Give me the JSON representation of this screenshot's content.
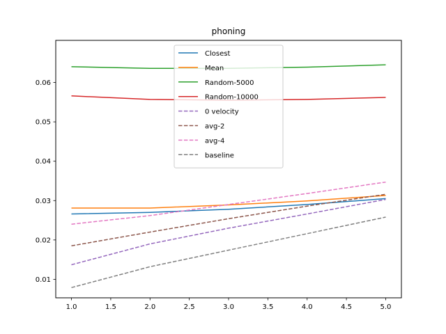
{
  "chart_data": {
    "type": "line",
    "title": "phoning",
    "xlabel": "",
    "ylabel": "",
    "x": [
      1,
      2,
      3,
      4,
      5
    ],
    "xlim": [
      0.8,
      5.2
    ],
    "ylim": [
      0.0053,
      0.0707
    ],
    "xticks": [
      1.0,
      1.5,
      2.0,
      2.5,
      3.0,
      3.5,
      4.0,
      4.5,
      5.0
    ],
    "xtick_labels": [
      "1.0",
      "1.5",
      "2.0",
      "2.5",
      "3.0",
      "3.5",
      "4.0",
      "4.5",
      "5.0"
    ],
    "yticks": [
      0.01,
      0.02,
      0.03,
      0.04,
      0.05,
      0.06
    ],
    "ytick_labels": [
      "0.01",
      "0.02",
      "0.03",
      "0.04",
      "0.05",
      "0.06"
    ],
    "grid": false,
    "legend_position": "top-center",
    "series": [
      {
        "name": "Closest",
        "color": "#1f77b4",
        "dash": "solid",
        "values": [
          0.0266,
          0.027,
          0.0278,
          0.029,
          0.0305
        ]
      },
      {
        "name": "Mean",
        "color": "#ff7f0e",
        "dash": "solid",
        "values": [
          0.0281,
          0.0281,
          0.0289,
          0.0299,
          0.0313
        ]
      },
      {
        "name": "Random-5000",
        "color": "#2ca02c",
        "dash": "solid",
        "values": [
          0.064,
          0.0636,
          0.0636,
          0.0639,
          0.0645
        ]
      },
      {
        "name": "Random-10000",
        "color": "#d62728",
        "dash": "solid",
        "values": [
          0.0566,
          0.0557,
          0.0555,
          0.0557,
          0.0562
        ]
      },
      {
        "name": "0 velocity",
        "color": "#9467bd",
        "dash": "dashed",
        "values": [
          0.0137,
          0.019,
          0.023,
          0.0266,
          0.0303
        ]
      },
      {
        "name": "avg-2",
        "color": "#8c564b",
        "dash": "dashed",
        "values": [
          0.0185,
          0.022,
          0.0254,
          0.0286,
          0.0316
        ]
      },
      {
        "name": "avg-4",
        "color": "#e377c2",
        "dash": "dashed",
        "values": [
          0.024,
          0.0262,
          0.029,
          0.0318,
          0.0347
        ]
      },
      {
        "name": "baseline",
        "color": "#7f7f7f",
        "dash": "dashed",
        "values": [
          0.0079,
          0.0132,
          0.0174,
          0.0216,
          0.0258
        ]
      }
    ]
  }
}
